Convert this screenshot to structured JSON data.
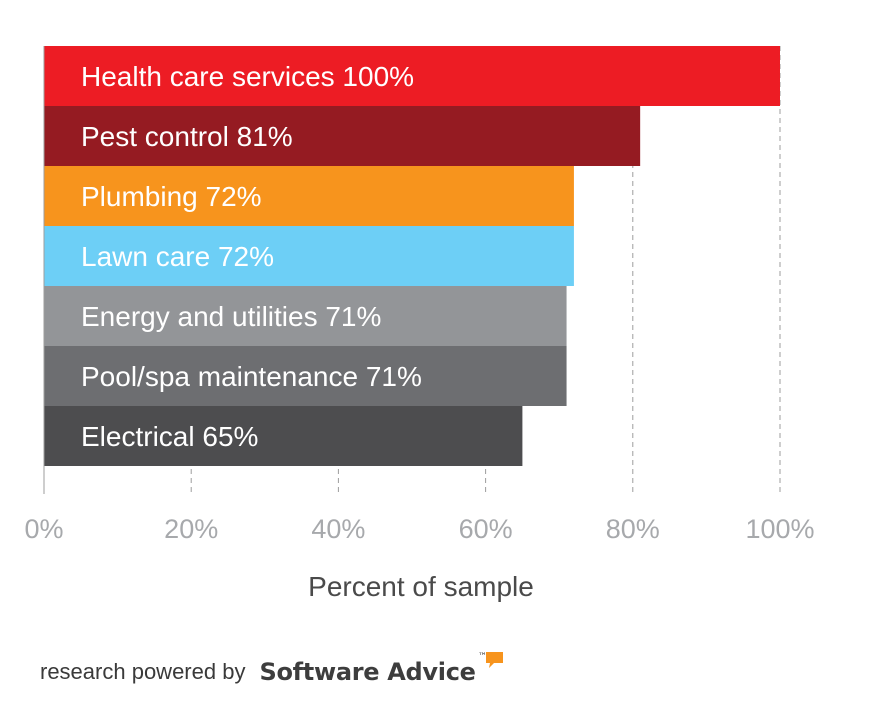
{
  "chart_data": {
    "type": "bar",
    "orientation": "horizontal",
    "categories": [
      "Health care services",
      "Pest control",
      "Plumbing",
      "Lawn care",
      "Energy and utilities",
      "Pool/spa maintenance",
      "Electrical"
    ],
    "values": [
      100,
      81,
      72,
      72,
      71,
      71,
      65
    ],
    "data_labels": [
      "Health care services  100%",
      "Pest control  81%",
      "Plumbing  72%",
      "Lawn care  72%",
      "Energy and utilities 71%",
      "Pool/spa maintenance  71%",
      "Electrical  65%"
    ],
    "bar_colors": [
      "#ed1c24",
      "#951b22",
      "#f7941d",
      "#6dcff6",
      "#939598",
      "#6d6e71",
      "#4d4d4f"
    ],
    "xlabel": "Percent of sample",
    "ylabel": "",
    "xlim": [
      0,
      100
    ],
    "x_ticks": [
      0,
      20,
      40,
      60,
      80,
      100
    ],
    "x_tick_labels": [
      "0%",
      "20%",
      "40%",
      "60%",
      "80%",
      "100%"
    ],
    "grid": "vertical dashed",
    "legend": "none"
  },
  "footer": {
    "lead": "research powered by",
    "brand": "Software Advice",
    "trademark": "™",
    "logo_icon": "speech-bubble-icon",
    "logo_color": "#f7941d"
  }
}
